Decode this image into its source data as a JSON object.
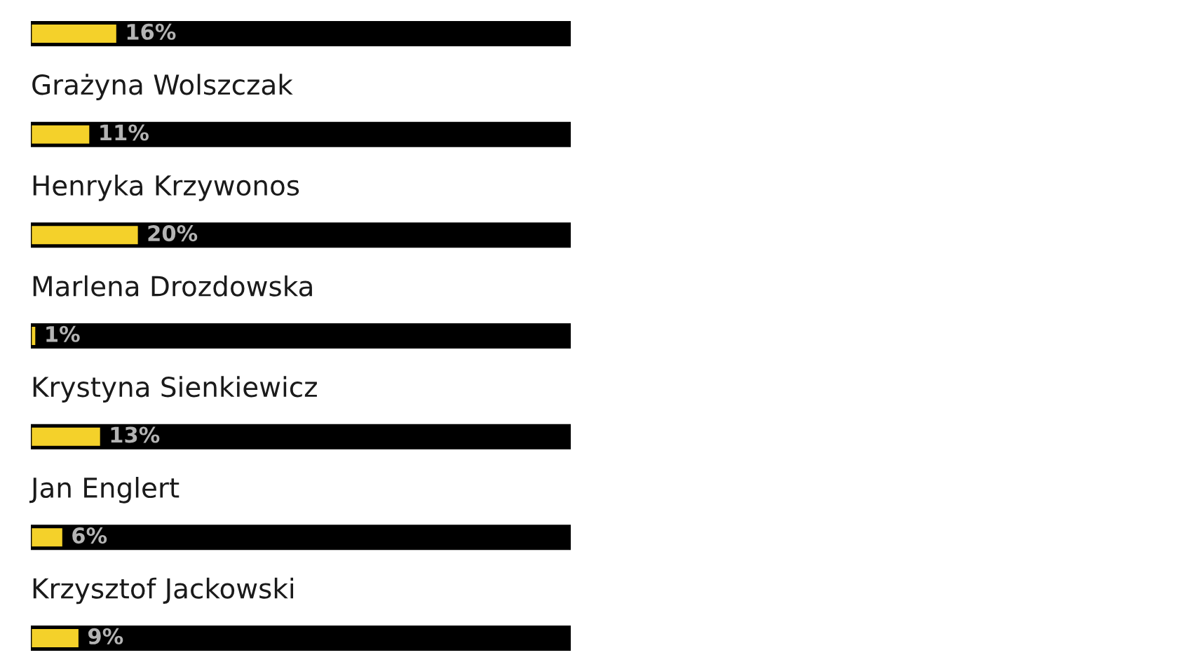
{
  "chart_data": {
    "type": "bar",
    "orientation": "horizontal",
    "categories": [
      null,
      "Grażyna Wolszczak",
      "Henryka Krzywonos",
      "Marlena Drozdowska",
      "Krystyna Sienkiewicz",
      "Jan Englert",
      "Krzysztof Jackowski"
    ],
    "series": [
      {
        "color": "#f4d12a",
        "values": [
          16,
          11,
          20,
          1,
          13,
          6,
          9
        ],
        "value_labels": [
          "16%",
          "11%",
          "20%",
          "1%",
          "13%",
          "6%",
          "9%"
        ]
      }
    ],
    "xlim": [
      0,
      100
    ],
    "tick_labels": "y"
  }
}
